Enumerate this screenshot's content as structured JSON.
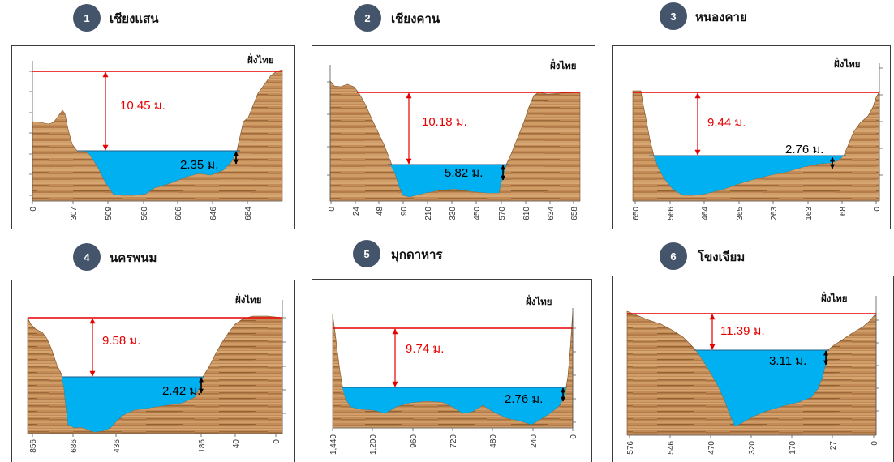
{
  "panels": [
    {
      "number": "1",
      "station": "เชียงแสน",
      "side_label": "ฝั่งไทย",
      "bank_height": "10.45 ม.",
      "water_depth": "2.35 ม.",
      "x_ticks": [
        "0",
        "307",
        "509",
        "560",
        "606",
        "646",
        "684"
      ]
    },
    {
      "number": "2",
      "station": "เชียงคาน",
      "side_label": "ฝั่งไทย",
      "bank_height": "10.18 ม.",
      "water_depth": "5.82 ม.",
      "x_ticks": [
        "0",
        "24",
        "48",
        "90",
        "210",
        "330",
        "450",
        "570",
        "610",
        "634",
        "658"
      ]
    },
    {
      "number": "3",
      "station": "หนองคาย",
      "side_label": "ฝั่งไทย",
      "bank_height": "9.44 ม.",
      "water_depth": "2.76 ม.",
      "x_ticks": [
        "650",
        "566",
        "464",
        "365",
        "263",
        "163",
        "68",
        "0"
      ]
    },
    {
      "number": "4",
      "station": "นครพนม",
      "side_label": "ฝั่งไทย",
      "bank_height": "9.58 ม.",
      "water_depth": "2.42 ม.",
      "x_ticks": [
        "856",
        "686",
        "436",
        "186",
        "40",
        "0"
      ]
    },
    {
      "number": "5",
      "station": "มุกดาหาร",
      "side_label": "ฝั่งไทย",
      "bank_height": "9.74 ม.",
      "water_depth": "2.76 ม.",
      "x_ticks": [
        "1,440",
        "1,200",
        "960",
        "720",
        "480",
        "240",
        "0"
      ]
    },
    {
      "number": "6",
      "station": "โขงเจียม",
      "side_label": "ฝั่งไทย",
      "bank_height": "11.39 ม.",
      "water_depth": "3.11 ม.",
      "x_ticks": [
        "576",
        "546",
        "470",
        "320",
        "170",
        "27",
        "0"
      ]
    }
  ],
  "colors": {
    "badge": "#44546a",
    "bank_line": "#e60000",
    "water": "#00b0f0",
    "terrain": "#c28b57"
  }
}
